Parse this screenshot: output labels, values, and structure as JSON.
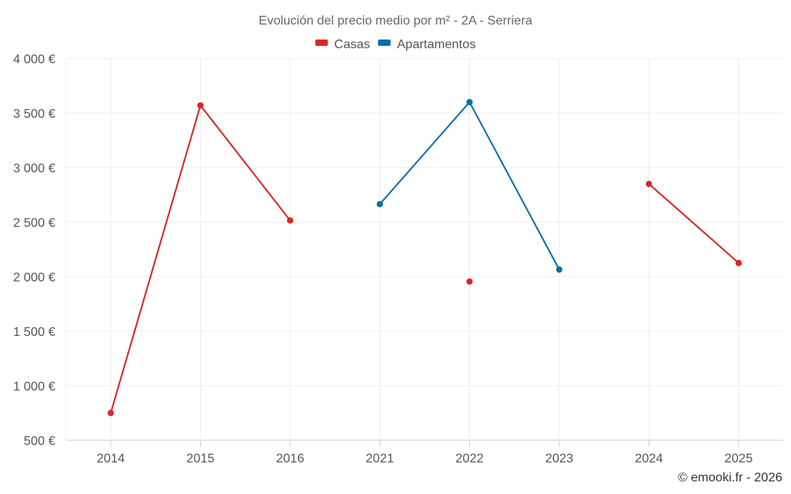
{
  "chart_data": {
    "type": "line",
    "title": "Evolución del precio medio por m² - 2A - Serriera",
    "categories": [
      "2014",
      "2015",
      "2016",
      "2021",
      "2022",
      "2023",
      "2024",
      "2025"
    ],
    "ylim": [
      500,
      4000
    ],
    "yticks": [
      500,
      1000,
      1500,
      2000,
      2500,
      3000,
      3500,
      4000
    ],
    "ytick_labels": [
      "500 €",
      "1 000 €",
      "1 500 €",
      "2 000 €",
      "2 500 €",
      "3 000 €",
      "3 500 €",
      "4 000 €"
    ],
    "grid": true,
    "legend_position": "top-center",
    "series": [
      {
        "name": "Casas",
        "color": "#d62728",
        "values": [
          750,
          3570,
          2515,
          null,
          1955,
          null,
          2850,
          2125
        ]
      },
      {
        "name": "Apartamentos",
        "color": "#0b6ea8",
        "values": [
          null,
          null,
          null,
          2665,
          3600,
          2065,
          null,
          null
        ]
      }
    ],
    "credit": "© emooki.fr - 2026"
  }
}
